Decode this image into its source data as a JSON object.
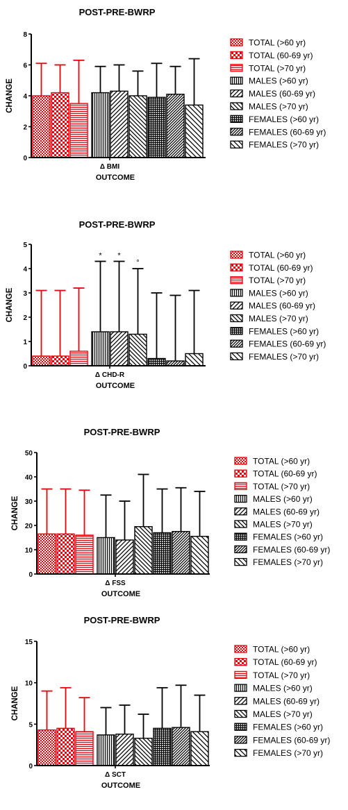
{
  "colors": {
    "red": "#e8000b",
    "black": "#000000",
    "background": "#ffffff"
  },
  "legend_entries": [
    {
      "label": "TOTAL (>60 yr)",
      "color": "#e8000b",
      "pattern": "dots-dense"
    },
    {
      "label": "TOTAL (60-69 yr)",
      "color": "#e8000b",
      "pattern": "checker"
    },
    {
      "label": "TOTAL (>70 yr)",
      "color": "#e8000b",
      "pattern": "horizontal"
    },
    {
      "label": "MALES (>60 yr)",
      "color": "#000000",
      "pattern": "vertical"
    },
    {
      "label": "MALES (60-69 yr)",
      "color": "#000000",
      "pattern": "diagonal-up"
    },
    {
      "label": "MALES (>70 yr)",
      "color": "#000000",
      "pattern": "diagonal-down"
    },
    {
      "label": "FEMALES (>60 yr)",
      "color": "#000000",
      "pattern": "grid"
    },
    {
      "label": "FEMALES (60-69 yr)",
      "color": "#000000",
      "pattern": "diagonal-up-dense"
    },
    {
      "label": "FEMALES (>70 yr)",
      "color": "#000000",
      "pattern": "diagonal-down-wide"
    }
  ],
  "chart_data": [
    {
      "type": "bar",
      "title": "POST-PRE-BWRP",
      "xlabel": "OUTCOME",
      "ylabel": "CHANGE",
      "category": "Δ BMI",
      "ylim": [
        0,
        8
      ],
      "yticks": [
        0,
        2,
        4,
        6,
        8
      ],
      "series": [
        {
          "name": "TOTAL (>60 yr)",
          "value": 4.0,
          "error": 2.1,
          "annotation": ""
        },
        {
          "name": "TOTAL (60-69 yr)",
          "value": 4.2,
          "error": 1.8,
          "annotation": ""
        },
        {
          "name": "TOTAL (>70 yr)",
          "value": 3.5,
          "error": 2.8,
          "annotation": ""
        },
        {
          "name": "MALES (>60 yr)",
          "value": 4.2,
          "error": 1.7,
          "annotation": ""
        },
        {
          "name": "MALES (60-69 yr)",
          "value": 4.3,
          "error": 1.7,
          "annotation": ""
        },
        {
          "name": "MALES (>70 yr)",
          "value": 4.0,
          "error": 1.6,
          "annotation": ""
        },
        {
          "name": "FEMALES (>60 yr)",
          "value": 3.9,
          "error": 2.2,
          "annotation": ""
        },
        {
          "name": "FEMALES (60-69 yr)",
          "value": 4.1,
          "error": 1.8,
          "annotation": ""
        },
        {
          "name": "FEMALES (>70 yr)",
          "value": 3.4,
          "error": 3.0,
          "annotation": ""
        }
      ]
    },
    {
      "type": "bar",
      "title": "POST-PRE-BWRP",
      "xlabel": "OUTCOME",
      "ylabel": "CHANGE",
      "category": "Δ CHD-R",
      "ylim": [
        0,
        5
      ],
      "yticks": [
        0,
        1,
        2,
        3,
        4,
        5
      ],
      "series": [
        {
          "name": "TOTAL (>60 yr)",
          "value": 0.4,
          "error": 2.7,
          "annotation": ""
        },
        {
          "name": "TOTAL (60-69 yr)",
          "value": 0.4,
          "error": 2.7,
          "annotation": ""
        },
        {
          "name": "TOTAL (>70 yr)",
          "value": 0.6,
          "error": 2.6,
          "annotation": ""
        },
        {
          "name": "MALES (>60 yr)",
          "value": 1.4,
          "error": 2.9,
          "annotation": "*"
        },
        {
          "name": "MALES (60-69 yr)",
          "value": 1.4,
          "error": 2.9,
          "annotation": "*"
        },
        {
          "name": "MALES (>70 yr)",
          "value": 1.3,
          "error": 2.7,
          "annotation": "°"
        },
        {
          "name": "FEMALES (>60 yr)",
          "value": 0.3,
          "error": 2.7,
          "annotation": ""
        },
        {
          "name": "FEMALES (60-69 yr)",
          "value": 0.2,
          "error": 2.7,
          "annotation": ""
        },
        {
          "name": "FEMALES (>70 yr)",
          "value": 0.5,
          "error": 2.6,
          "annotation": ""
        }
      ]
    },
    {
      "type": "bar",
      "title": "POST-PRE-BWRP",
      "xlabel": "OUTCOME",
      "ylabel": "CHANGE",
      "category": "Δ FSS",
      "ylim": [
        0,
        50
      ],
      "yticks": [
        0,
        10,
        20,
        30,
        40,
        50
      ],
      "series": [
        {
          "name": "TOTAL (>60 yr)",
          "value": 16.5,
          "error": 18.5,
          "annotation": ""
        },
        {
          "name": "TOTAL (60-69 yr)",
          "value": 16.5,
          "error": 18.5,
          "annotation": ""
        },
        {
          "name": "TOTAL (>70 yr)",
          "value": 16.0,
          "error": 18.5,
          "annotation": ""
        },
        {
          "name": "MALES (>60 yr)",
          "value": 15.0,
          "error": 17.5,
          "annotation": ""
        },
        {
          "name": "MALES (60-69 yr)",
          "value": 14.0,
          "error": 16.0,
          "annotation": ""
        },
        {
          "name": "MALES (>70 yr)",
          "value": 19.5,
          "error": 21.5,
          "annotation": ""
        },
        {
          "name": "FEMALES (>60 yr)",
          "value": 17.0,
          "error": 18.0,
          "annotation": ""
        },
        {
          "name": "FEMALES (60-69 yr)",
          "value": 17.5,
          "error": 18.0,
          "annotation": ""
        },
        {
          "name": "FEMALES (>70 yr)",
          "value": 15.5,
          "error": 18.5,
          "annotation": ""
        }
      ]
    },
    {
      "type": "bar",
      "title": "POST-PRE-BWRP",
      "xlabel": "OUTCOME",
      "ylabel": "CHANGE",
      "category": "Δ SCT",
      "ylim": [
        0,
        15
      ],
      "yticks": [
        0,
        5,
        10,
        15
      ],
      "series": [
        {
          "name": "TOTAL (>60 yr)",
          "value": 4.3,
          "error": 4.7,
          "annotation": ""
        },
        {
          "name": "TOTAL (60-69 yr)",
          "value": 4.5,
          "error": 4.9,
          "annotation": ""
        },
        {
          "name": "TOTAL (>70 yr)",
          "value": 4.1,
          "error": 4.1,
          "annotation": ""
        },
        {
          "name": "MALES (>60 yr)",
          "value": 3.7,
          "error": 3.3,
          "annotation": ""
        },
        {
          "name": "MALES (60-69 yr)",
          "value": 3.8,
          "error": 3.5,
          "annotation": ""
        },
        {
          "name": "MALES (>70 yr)",
          "value": 3.3,
          "error": 2.9,
          "annotation": ""
        },
        {
          "name": "FEMALES (>60 yr)",
          "value": 4.5,
          "error": 4.9,
          "annotation": ""
        },
        {
          "name": "FEMALES (60-69 yr)",
          "value": 4.6,
          "error": 5.1,
          "annotation": ""
        },
        {
          "name": "FEMALES (>70 yr)",
          "value": 4.1,
          "error": 4.4,
          "annotation": ""
        }
      ]
    }
  ]
}
